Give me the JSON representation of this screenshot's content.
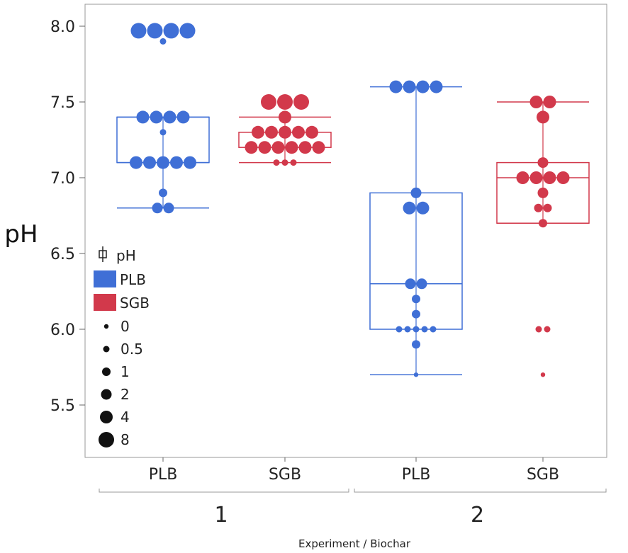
{
  "chart_data": {
    "type": "box",
    "ylabel": "pH",
    "xlabel": "Experiment / Biochar",
    "ylim": [
      5.2,
      8.1
    ],
    "yticks": [
      "5.5",
      "6.0",
      "6.5",
      "7.0",
      "7.5",
      "8.0"
    ],
    "ytick_values": [
      5.5,
      6.0,
      6.5,
      7.0,
      7.5,
      8.0
    ],
    "groups": [
      {
        "label": "1",
        "categories": [
          "PLB",
          "SGB"
        ]
      },
      {
        "label": "2",
        "categories": [
          "PLB",
          "SGB"
        ]
      }
    ],
    "colors": {
      "PLB": "#3f6fd6",
      "SGB": "#d2394b"
    },
    "boxes": [
      {
        "group": "1",
        "biochar": "PLB",
        "whisker_low": 6.8,
        "q1": 7.1,
        "median": 7.1,
        "q3": 7.4,
        "whisker_high": 7.4,
        "points": [
          {
            "y": 7.97,
            "w": 8,
            "n": 4
          },
          {
            "y": 7.9,
            "w": 0.5,
            "n": 1
          },
          {
            "y": 7.4,
            "w": 4,
            "n": 4
          },
          {
            "y": 7.3,
            "w": 0.5,
            "n": 1
          },
          {
            "y": 7.1,
            "w": 4,
            "n": 5
          },
          {
            "y": 6.9,
            "w": 1,
            "n": 1
          },
          {
            "y": 6.8,
            "w": 2,
            "n": 2
          }
        ]
      },
      {
        "group": "1",
        "biochar": "SGB",
        "whisker_low": 7.1,
        "q1": 7.2,
        "median": 7.3,
        "q3": 7.3,
        "whisker_high": 7.4,
        "points": [
          {
            "y": 7.5,
            "w": 8,
            "n": 3
          },
          {
            "y": 7.4,
            "w": 4,
            "n": 1
          },
          {
            "y": 7.3,
            "w": 4,
            "n": 5
          },
          {
            "y": 7.2,
            "w": 4,
            "n": 6
          },
          {
            "y": 7.1,
            "w": 0.5,
            "n": 3
          }
        ]
      },
      {
        "group": "2",
        "biochar": "PLB",
        "whisker_low": 5.7,
        "q1": 6.0,
        "median": 6.3,
        "q3": 6.9,
        "whisker_high": 7.6,
        "points": [
          {
            "y": 7.6,
            "w": 4,
            "n": 4
          },
          {
            "y": 6.9,
            "w": 2,
            "n": 1
          },
          {
            "y": 6.8,
            "w": 4,
            "n": 2
          },
          {
            "y": 6.3,
            "w": 2,
            "n": 2
          },
          {
            "y": 6.2,
            "w": 1,
            "n": 1
          },
          {
            "y": 6.1,
            "w": 1,
            "n": 1
          },
          {
            "y": 6.0,
            "w": 0.5,
            "n": 5
          },
          {
            "y": 5.9,
            "w": 1,
            "n": 1
          },
          {
            "y": 5.7,
            "w": 0,
            "n": 1
          }
        ]
      },
      {
        "group": "2",
        "biochar": "SGB",
        "whisker_low": 6.7,
        "q1": 6.7,
        "median": 7.0,
        "q3": 7.1,
        "whisker_high": 7.5,
        "points": [
          {
            "y": 7.5,
            "w": 4,
            "n": 2
          },
          {
            "y": 7.4,
            "w": 4,
            "n": 1
          },
          {
            "y": 7.1,
            "w": 2,
            "n": 1
          },
          {
            "y": 7.0,
            "w": 4,
            "n": 4
          },
          {
            "y": 6.9,
            "w": 2,
            "n": 1
          },
          {
            "y": 6.8,
            "w": 1,
            "n": 2
          },
          {
            "y": 6.7,
            "w": 1,
            "n": 1
          },
          {
            "y": 6.0,
            "w": 0.5,
            "n": 2
          },
          {
            "y": 5.7,
            "w": 0,
            "n": 1
          }
        ]
      }
    ],
    "legend": {
      "title": "pH",
      "series": [
        "PLB",
        "SGB"
      ],
      "size_title": "",
      "sizes": [
        "0",
        "0.5",
        "1",
        "2",
        "4",
        "8"
      ],
      "size_values": [
        0,
        0.5,
        1,
        2,
        4,
        8
      ]
    }
  }
}
